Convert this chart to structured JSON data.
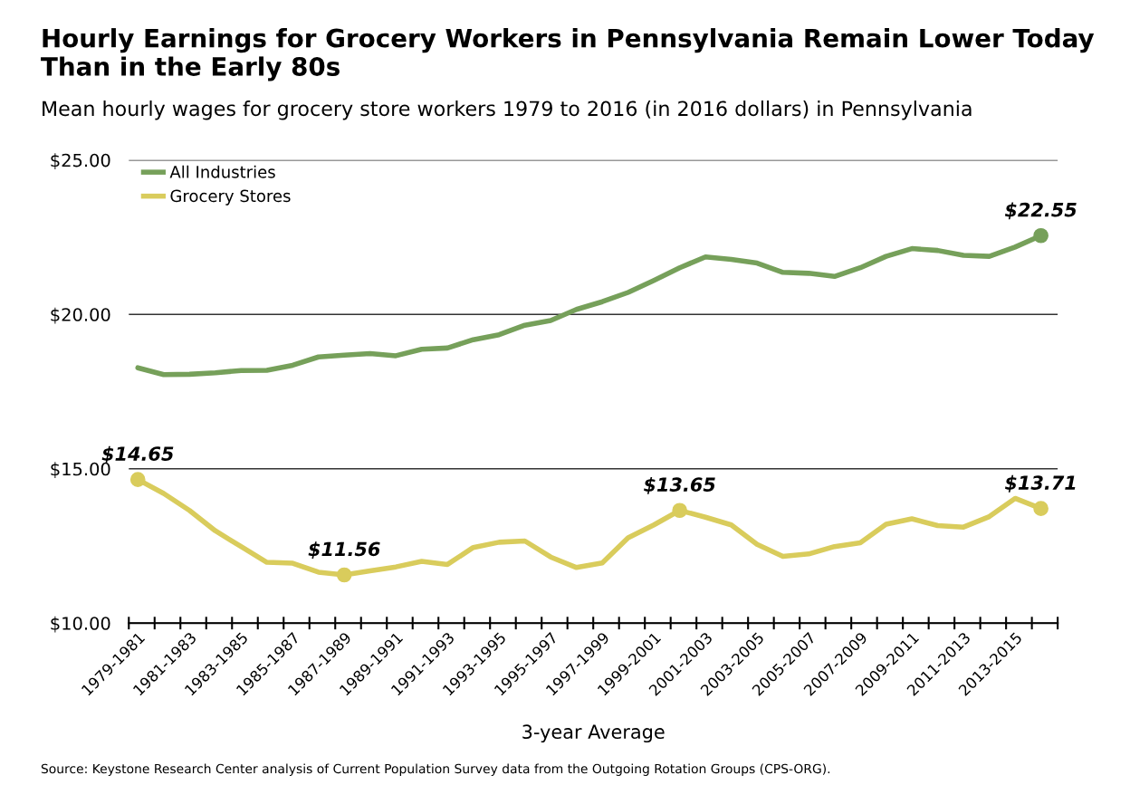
{
  "chart_data": {
    "type": "line",
    "title": "Hourly Earnings for Grocery Workers in Pennsylvania Remain Lower Today Than in the Early 80s",
    "subtitle": "Mean hourly wages for grocery store workers 1979 to 2016 (in 2016 dollars) in Pennsylvania",
    "xlabel": "3-year Average",
    "categories": [
      "1979-1981",
      null,
      "1981-1983",
      null,
      "1983-1985",
      null,
      "1985-1987",
      null,
      "1987-1989",
      null,
      "1989-1991",
      null,
      "1991-1993",
      null,
      "1993-1995",
      null,
      "1995-1997",
      null,
      "1997-1999",
      null,
      "1999-2001",
      null,
      "2001-2003",
      null,
      "2003-2005",
      null,
      "2005-2007",
      null,
      "2007-2009",
      null,
      "2009-2011",
      null,
      "2011-2013",
      null,
      "2013-2015",
      null
    ],
    "series": [
      {
        "name": "All Industries",
        "color": "#76a05a",
        "values": [
          18.27,
          18.05,
          18.06,
          18.11,
          18.18,
          18.19,
          18.35,
          18.62,
          18.68,
          18.73,
          18.66,
          18.87,
          18.91,
          19.18,
          19.34,
          19.65,
          19.8,
          20.16,
          20.41,
          20.71,
          21.1,
          21.51,
          21.86,
          21.78,
          21.66,
          21.36,
          21.33,
          21.23,
          21.51,
          21.88,
          22.13,
          22.07,
          21.91,
          21.88,
          22.18,
          22.55
        ],
        "value_labels": [
          null,
          null,
          null,
          null,
          null,
          null,
          null,
          null,
          null,
          null,
          null,
          null,
          null,
          null,
          null,
          null,
          null,
          null,
          null,
          null,
          null,
          null,
          null,
          null,
          null,
          null,
          null,
          null,
          null,
          null,
          null,
          null,
          null,
          null,
          null,
          "$22.55"
        ]
      },
      {
        "name": "Grocery Stores",
        "color": "#d9cc5c",
        "values": [
          14.65,
          14.2,
          13.65,
          12.99,
          12.48,
          11.97,
          11.94,
          11.65,
          11.56,
          11.69,
          11.82,
          12.0,
          11.9,
          12.45,
          12.62,
          12.66,
          12.14,
          11.8,
          11.95,
          12.76,
          13.18,
          13.65,
          13.43,
          13.18,
          12.55,
          12.16,
          12.24,
          12.48,
          12.6,
          13.2,
          13.38,
          13.16,
          13.11,
          13.45,
          14.04,
          13.71
        ],
        "value_labels": [
          "$14.65",
          null,
          null,
          null,
          null,
          null,
          null,
          null,
          "$11.56",
          null,
          null,
          null,
          null,
          null,
          null,
          null,
          null,
          null,
          null,
          null,
          null,
          "$13.65",
          null,
          null,
          null,
          null,
          null,
          null,
          null,
          null,
          null,
          null,
          null,
          null,
          null,
          "$13.71"
        ]
      }
    ],
    "ylim": [
      10,
      25
    ],
    "yticks": [
      {
        "value": 10,
        "label": "$10.00"
      },
      {
        "value": 15,
        "label": "$15.00"
      },
      {
        "value": 20,
        "label": "$20.00"
      },
      {
        "value": 25,
        "label": "$25.00"
      }
    ],
    "grid": "y",
    "legend": "top left",
    "line_style": "solid",
    "annotations": [
      "Source: Keystone Research Center analysis of Current Population Survey data from the Outgoing Rotation Groups (CPS-ORG)."
    ]
  }
}
